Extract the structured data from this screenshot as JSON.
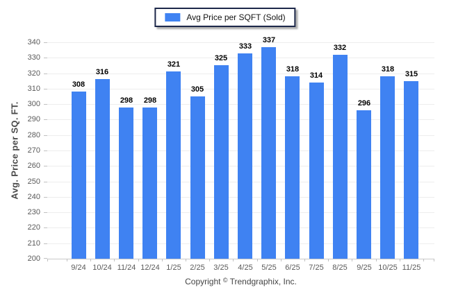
{
  "legend": {
    "label": "Avg Price per SQFT (Sold)",
    "swatch_color": "#3F82F2"
  },
  "footer": {
    "prefix": "Copyright",
    "symbol": "©",
    "company": "Trendgraphix, Inc."
  },
  "chart_data": {
    "type": "bar",
    "categories": [
      "9/24",
      "10/24",
      "11/24",
      "12/24",
      "1/25",
      "2/25",
      "3/25",
      "4/25",
      "5/25",
      "6/25",
      "7/25",
      "8/25",
      "9/25",
      "10/25",
      "11/25"
    ],
    "values": [
      308,
      316,
      298,
      298,
      321,
      305,
      325,
      333,
      337,
      318,
      314,
      332,
      296,
      318,
      315
    ],
    "series_name": "Avg Price per SQFT (Sold)",
    "title": "",
    "xlabel": "",
    "ylabel": "Avg. Price per SQ. FT.",
    "ylim": [
      200,
      340
    ],
    "ytick_step": 10,
    "grid": true,
    "legend_position": "top-center",
    "bar_color": "#3F82F2",
    "gridline_color": "#ededed",
    "axis_color": "#c9c9c9",
    "tick_color": "#c0c0c0",
    "tick_label_color": "#595959",
    "value_label_color": "#000000"
  }
}
